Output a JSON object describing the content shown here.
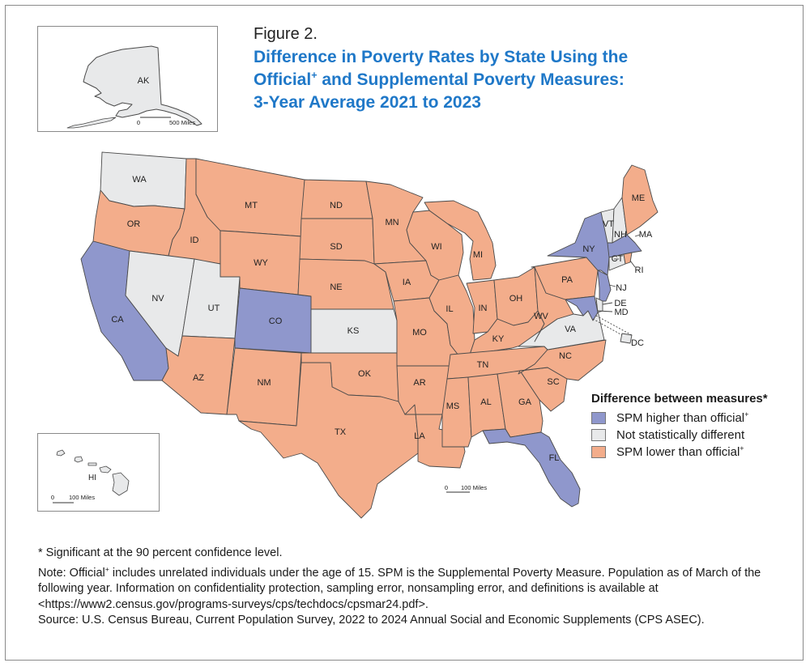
{
  "figure_label": "Figure 2.",
  "title_line1": "Difference in Poverty Rates by State Using the",
  "title_line2_a": "Official",
  "title_line2_b": " and Supplemental Poverty Measures:",
  "title_line3": "3-Year Average 2021 to 2023",
  "dagger": "+",
  "colors": {
    "higher": "#8f97cc",
    "not_different": "#e8e9ea",
    "lower": "#f3ad8b",
    "border": "#4a4a4a",
    "title": "#1f78c8"
  },
  "legend": {
    "title": "Difference between measures*",
    "items": [
      {
        "key": "higher",
        "label": "SPM higher than official",
        "dagger": "+"
      },
      {
        "key": "not_different",
        "label": "Not statistically different",
        "dagger": ""
      },
      {
        "key": "lower",
        "label": "SPM lower than official",
        "dagger": "+"
      }
    ]
  },
  "scale_bars": {
    "alaska": {
      "zero": "0",
      "label": "500 Miles"
    },
    "hawaii": {
      "zero": "0",
      "label": "100 Miles"
    },
    "main": {
      "zero": "0",
      "label": "100 Miles"
    }
  },
  "states": {
    "AK": "not_different",
    "HI": "not_different",
    "WA": "not_different",
    "OR": "lower",
    "CA": "higher",
    "ID": "lower",
    "NV": "not_different",
    "UT": "not_different",
    "AZ": "lower",
    "MT": "lower",
    "WY": "lower",
    "CO": "higher",
    "NM": "lower",
    "ND": "lower",
    "SD": "lower",
    "NE": "lower",
    "KS": "not_different",
    "OK": "lower",
    "TX": "lower",
    "MN": "lower",
    "IA": "lower",
    "MO": "lower",
    "AR": "lower",
    "LA": "lower",
    "WI": "lower",
    "IL": "lower",
    "MI": "lower",
    "IN": "lower",
    "OH": "lower",
    "KY": "lower",
    "TN": "lower",
    "MS": "lower",
    "AL": "lower",
    "GA": "lower",
    "FL": "higher",
    "SC": "lower",
    "NC": "lower",
    "VA": "not_different",
    "WV": "lower",
    "PA": "lower",
    "NY": "higher",
    "NJ": "higher",
    "DE": "not_different",
    "MD": "higher",
    "DC": "not_different",
    "VT": "not_different",
    "NH": "not_different",
    "ME": "lower",
    "MA": "higher",
    "CT": "not_different",
    "RI": "lower"
  },
  "notes": {
    "significance": "* Significant at the 90 percent confidence level.",
    "note_a": "Note: Official",
    "note_b": " includes unrelated individuals under the age of 15. SPM is the Supplemental Poverty Measure. Population as of March of the following year. Information on confidentiality protection, sampling error, nonsampling error, and definitions is available at <https://www2.census.gov/programs-surveys/cps/techdocs/cpsmar24.pdf>.",
    "source": "Source: U.S. Census Bureau, Current Population Survey, 2022 to 2024 Annual Social and Economic Supplements (CPS ASEC)."
  }
}
